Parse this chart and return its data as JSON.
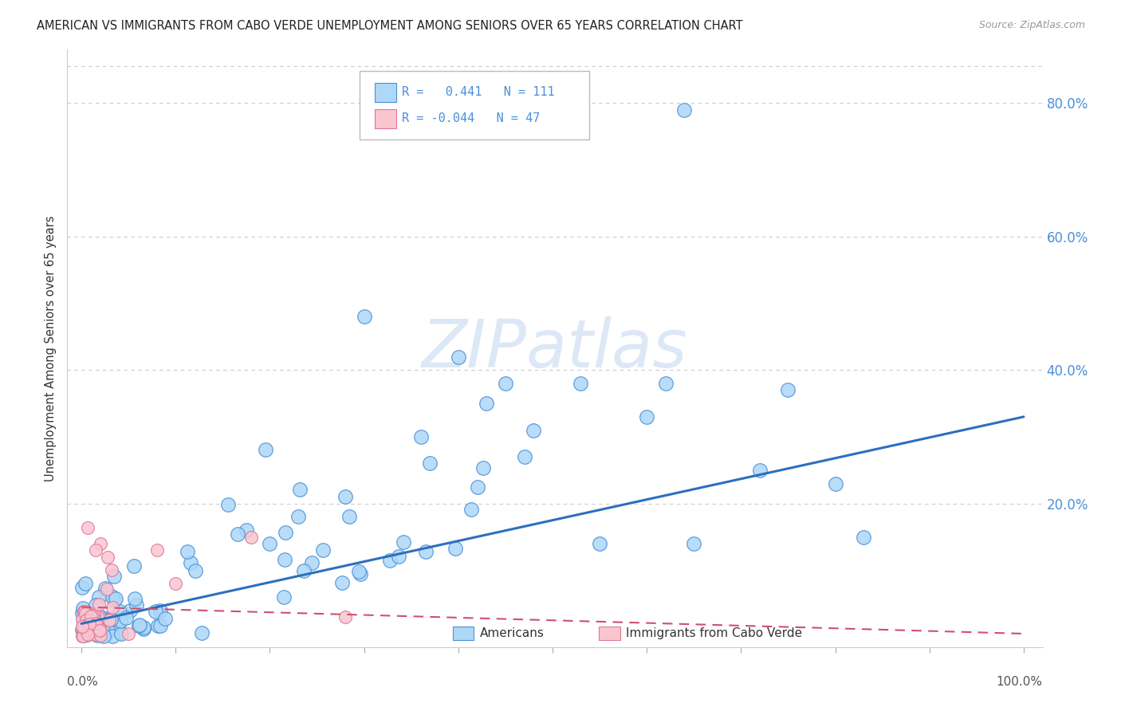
{
  "title": "AMERICAN VS IMMIGRANTS FROM CABO VERDE UNEMPLOYMENT AMONG SENIORS OVER 65 YEARS CORRELATION CHART",
  "source": "Source: ZipAtlas.com",
  "ylabel": "Unemployment Among Seniors over 65 years",
  "r_american": 0.441,
  "n_american": 111,
  "r_caboverde": -0.044,
  "n_caboverde": 47,
  "american_color": "#add8f7",
  "american_edge": "#4a90d9",
  "caboverde_color": "#f9c6d0",
  "caboverde_edge": "#e07898",
  "trendline_american_color": "#2c6fbe",
  "trendline_caboverde_color": "#d0506a",
  "background_color": "#ffffff",
  "legend_label_american": "Americans",
  "legend_label_caboverde": "Immigrants from Cabo Verde",
  "watermark_color": "#dce8f5",
  "grid_color": "#cccccc",
  "right_tick_color": "#4a90d9",
  "xlim": [
    0.0,
    1.0
  ],
  "ylim": [
    0.0,
    0.88
  ],
  "trendline_am_x0": 0.0,
  "trendline_am_y0": 0.02,
  "trendline_am_x1": 1.0,
  "trendline_am_y1": 0.33,
  "trendline_cv_x0": 0.0,
  "trendline_cv_y0": 0.045,
  "trendline_cv_x1": 1.0,
  "trendline_cv_y1": 0.005
}
